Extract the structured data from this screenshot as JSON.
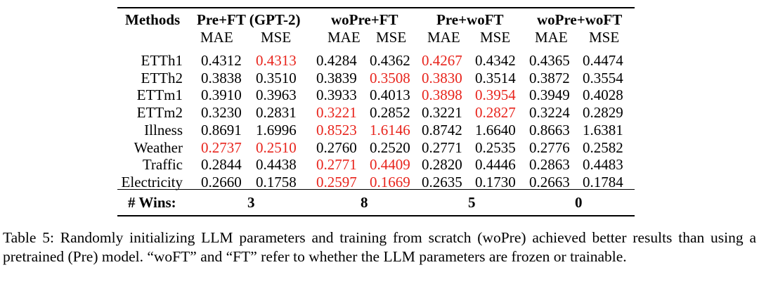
{
  "table": {
    "method_header": "Methods",
    "groups": [
      "Pre+FT (GPT-2)",
      "woPre+FT",
      "Pre+woFT",
      "woPre+woFT"
    ],
    "subheaders": [
      "MAE",
      "MSE",
      "MAE",
      "MSE",
      "MAE",
      "MSE",
      "MAE",
      "MSE"
    ],
    "rows": [
      {
        "name": "ETTh1",
        "values": [
          "0.4312",
          "0.4313",
          "0.4284",
          "0.4362",
          "0.4267",
          "0.4342",
          "0.4365",
          "0.4474"
        ],
        "highlight": [
          1,
          4
        ]
      },
      {
        "name": "ETTh2",
        "values": [
          "0.3838",
          "0.3510",
          "0.3839",
          "0.3508",
          "0.3830",
          "0.3514",
          "0.3872",
          "0.3554"
        ],
        "highlight": [
          3,
          4
        ]
      },
      {
        "name": "ETTm1",
        "values": [
          "0.3910",
          "0.3963",
          "0.3933",
          "0.4013",
          "0.3898",
          "0.3954",
          "0.3949",
          "0.4028"
        ],
        "highlight": [
          4,
          5
        ]
      },
      {
        "name": "ETTm2",
        "values": [
          "0.3230",
          "0.2831",
          "0.3221",
          "0.2852",
          "0.3221",
          "0.2827",
          "0.3224",
          "0.2829"
        ],
        "highlight": [
          2,
          5
        ]
      },
      {
        "name": "Illness",
        "values": [
          "0.8691",
          "1.6996",
          "0.8523",
          "1.6146",
          "0.8742",
          "1.6640",
          "0.8663",
          "1.6381"
        ],
        "highlight": [
          2,
          3
        ]
      },
      {
        "name": "Weather",
        "values": [
          "0.2737",
          "0.2510",
          "0.2760",
          "0.2520",
          "0.2771",
          "0.2535",
          "0.2776",
          "0.2582"
        ],
        "highlight": [
          0,
          1
        ]
      },
      {
        "name": "Traffic",
        "values": [
          "0.2844",
          "0.4438",
          "0.2771",
          "0.4409",
          "0.2820",
          "0.4446",
          "0.2863",
          "0.4483"
        ],
        "highlight": [
          2,
          3
        ]
      },
      {
        "name": "Electricity",
        "values": [
          "0.2660",
          "0.1758",
          "0.2597",
          "0.1669",
          "0.2635",
          "0.1730",
          "0.2663",
          "0.1784"
        ],
        "highlight": [
          2,
          3
        ]
      }
    ],
    "wins_label": "# Wins:",
    "wins": [
      "3",
      "8",
      "5",
      "0"
    ],
    "highlight_color": "#e8241c"
  },
  "caption": "Table 5: Randomly initializing LLM parameters and training from scratch (woPre) achieved better results than using a pretrained (Pre) model. “woFT” and “FT” refer to whether the LLM parameters are frozen or trainable."
}
